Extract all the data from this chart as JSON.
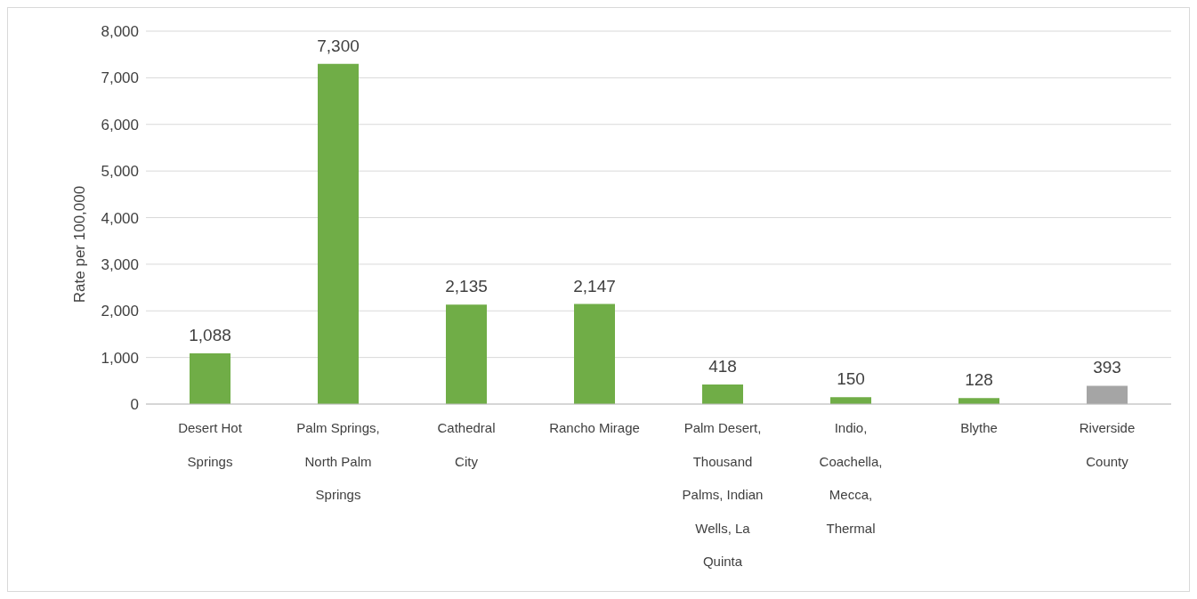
{
  "chart_data": {
    "type": "bar",
    "ylabel": "Rate per 100,000",
    "categories": [
      "Desert Hot Springs",
      "Palm Springs, North Palm Springs",
      "Cathedral City",
      "Rancho Mirage",
      "Palm Desert, Thousand Palms, Indian Wells, La Quinta",
      "Indio, Coachella, Mecca, Thermal",
      "Blythe",
      "Riverside County"
    ],
    "values": [
      1088,
      7300,
      2135,
      2147,
      418,
      150,
      128,
      393
    ],
    "value_labels": [
      "1,088",
      "7,300",
      "2,135",
      "2,147",
      "418",
      "150",
      "128",
      "393"
    ],
    "colors": [
      "#70ad47",
      "#70ad47",
      "#70ad47",
      "#70ad47",
      "#70ad47",
      "#70ad47",
      "#70ad47",
      "#a5a5a5"
    ],
    "ylim": [
      0,
      8000
    ],
    "yticks": [
      0,
      {
        "value": 1000,
        "label": "1,000"
      },
      {
        "value": 2000,
        "label": "2,000"
      },
      {
        "value": 3000,
        "label": "3,000"
      },
      {
        "value": 4000,
        "label": "4,000"
      },
      {
        "value": 5000,
        "label": "5,000"
      },
      {
        "value": 6000,
        "label": "6,000"
      },
      {
        "value": 7000,
        "label": "7,000"
      },
      {
        "value": 8000,
        "label": "8,000"
      }
    ],
    "grid": "y",
    "legend": false
  }
}
